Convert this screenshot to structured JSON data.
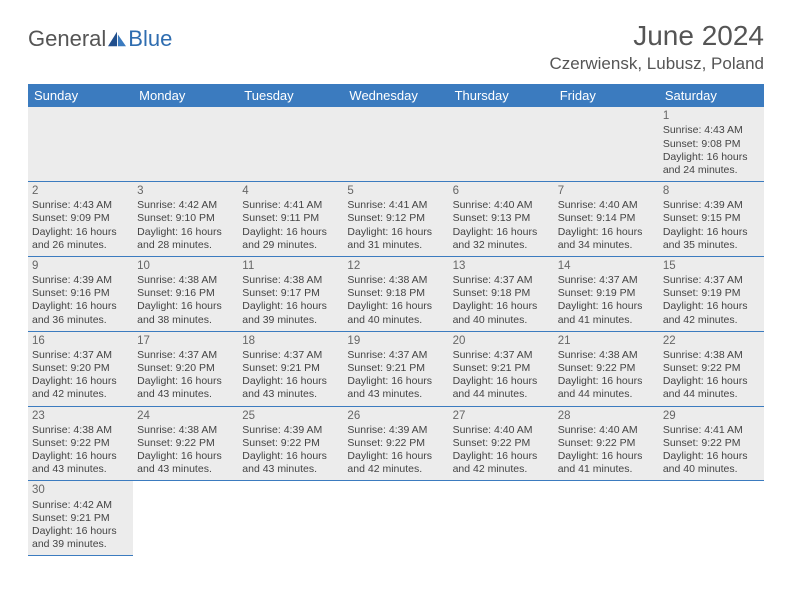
{
  "brand": {
    "text1": "General",
    "text2": "Blue",
    "icon_color": "#2f6db0"
  },
  "title": "June 2024",
  "location": "Czerwiensk, Lubusz, Poland",
  "colors": {
    "header_bg": "#3b7bbf",
    "header_fg": "#ffffff",
    "row_bg": "#ececec",
    "border": "#3b7bbf",
    "text": "#444444",
    "title": "#555555"
  },
  "weekdays": [
    "Sunday",
    "Monday",
    "Tuesday",
    "Wednesday",
    "Thursday",
    "Friday",
    "Saturday"
  ],
  "weeks": [
    [
      null,
      null,
      null,
      null,
      null,
      null,
      {
        "n": "1",
        "sunrise": "4:43 AM",
        "sunset": "9:08 PM",
        "dl": "16 hours and 24 minutes."
      }
    ],
    [
      {
        "n": "2",
        "sunrise": "4:43 AM",
        "sunset": "9:09 PM",
        "dl": "16 hours and 26 minutes."
      },
      {
        "n": "3",
        "sunrise": "4:42 AM",
        "sunset": "9:10 PM",
        "dl": "16 hours and 28 minutes."
      },
      {
        "n": "4",
        "sunrise": "4:41 AM",
        "sunset": "9:11 PM",
        "dl": "16 hours and 29 minutes."
      },
      {
        "n": "5",
        "sunrise": "4:41 AM",
        "sunset": "9:12 PM",
        "dl": "16 hours and 31 minutes."
      },
      {
        "n": "6",
        "sunrise": "4:40 AM",
        "sunset": "9:13 PM",
        "dl": "16 hours and 32 minutes."
      },
      {
        "n": "7",
        "sunrise": "4:40 AM",
        "sunset": "9:14 PM",
        "dl": "16 hours and 34 minutes."
      },
      {
        "n": "8",
        "sunrise": "4:39 AM",
        "sunset": "9:15 PM",
        "dl": "16 hours and 35 minutes."
      }
    ],
    [
      {
        "n": "9",
        "sunrise": "4:39 AM",
        "sunset": "9:16 PM",
        "dl": "16 hours and 36 minutes."
      },
      {
        "n": "10",
        "sunrise": "4:38 AM",
        "sunset": "9:16 PM",
        "dl": "16 hours and 38 minutes."
      },
      {
        "n": "11",
        "sunrise": "4:38 AM",
        "sunset": "9:17 PM",
        "dl": "16 hours and 39 minutes."
      },
      {
        "n": "12",
        "sunrise": "4:38 AM",
        "sunset": "9:18 PM",
        "dl": "16 hours and 40 minutes."
      },
      {
        "n": "13",
        "sunrise": "4:37 AM",
        "sunset": "9:18 PM",
        "dl": "16 hours and 40 minutes."
      },
      {
        "n": "14",
        "sunrise": "4:37 AM",
        "sunset": "9:19 PM",
        "dl": "16 hours and 41 minutes."
      },
      {
        "n": "15",
        "sunrise": "4:37 AM",
        "sunset": "9:19 PM",
        "dl": "16 hours and 42 minutes."
      }
    ],
    [
      {
        "n": "16",
        "sunrise": "4:37 AM",
        "sunset": "9:20 PM",
        "dl": "16 hours and 42 minutes."
      },
      {
        "n": "17",
        "sunrise": "4:37 AM",
        "sunset": "9:20 PM",
        "dl": "16 hours and 43 minutes."
      },
      {
        "n": "18",
        "sunrise": "4:37 AM",
        "sunset": "9:21 PM",
        "dl": "16 hours and 43 minutes."
      },
      {
        "n": "19",
        "sunrise": "4:37 AM",
        "sunset": "9:21 PM",
        "dl": "16 hours and 43 minutes."
      },
      {
        "n": "20",
        "sunrise": "4:37 AM",
        "sunset": "9:21 PM",
        "dl": "16 hours and 44 minutes."
      },
      {
        "n": "21",
        "sunrise": "4:38 AM",
        "sunset": "9:22 PM",
        "dl": "16 hours and 44 minutes."
      },
      {
        "n": "22",
        "sunrise": "4:38 AM",
        "sunset": "9:22 PM",
        "dl": "16 hours and 44 minutes."
      }
    ],
    [
      {
        "n": "23",
        "sunrise": "4:38 AM",
        "sunset": "9:22 PM",
        "dl": "16 hours and 43 minutes."
      },
      {
        "n": "24",
        "sunrise": "4:38 AM",
        "sunset": "9:22 PM",
        "dl": "16 hours and 43 minutes."
      },
      {
        "n": "25",
        "sunrise": "4:39 AM",
        "sunset": "9:22 PM",
        "dl": "16 hours and 43 minutes."
      },
      {
        "n": "26",
        "sunrise": "4:39 AM",
        "sunset": "9:22 PM",
        "dl": "16 hours and 42 minutes."
      },
      {
        "n": "27",
        "sunrise": "4:40 AM",
        "sunset": "9:22 PM",
        "dl": "16 hours and 42 minutes."
      },
      {
        "n": "28",
        "sunrise": "4:40 AM",
        "sunset": "9:22 PM",
        "dl": "16 hours and 41 minutes."
      },
      {
        "n": "29",
        "sunrise": "4:41 AM",
        "sunset": "9:22 PM",
        "dl": "16 hours and 40 minutes."
      }
    ],
    [
      {
        "n": "30",
        "sunrise": "4:42 AM",
        "sunset": "9:21 PM",
        "dl": "16 hours and 39 minutes."
      },
      null,
      null,
      null,
      null,
      null,
      null
    ]
  ],
  "labels": {
    "sunrise": "Sunrise: ",
    "sunset": "Sunset: ",
    "daylight": "Daylight: "
  }
}
